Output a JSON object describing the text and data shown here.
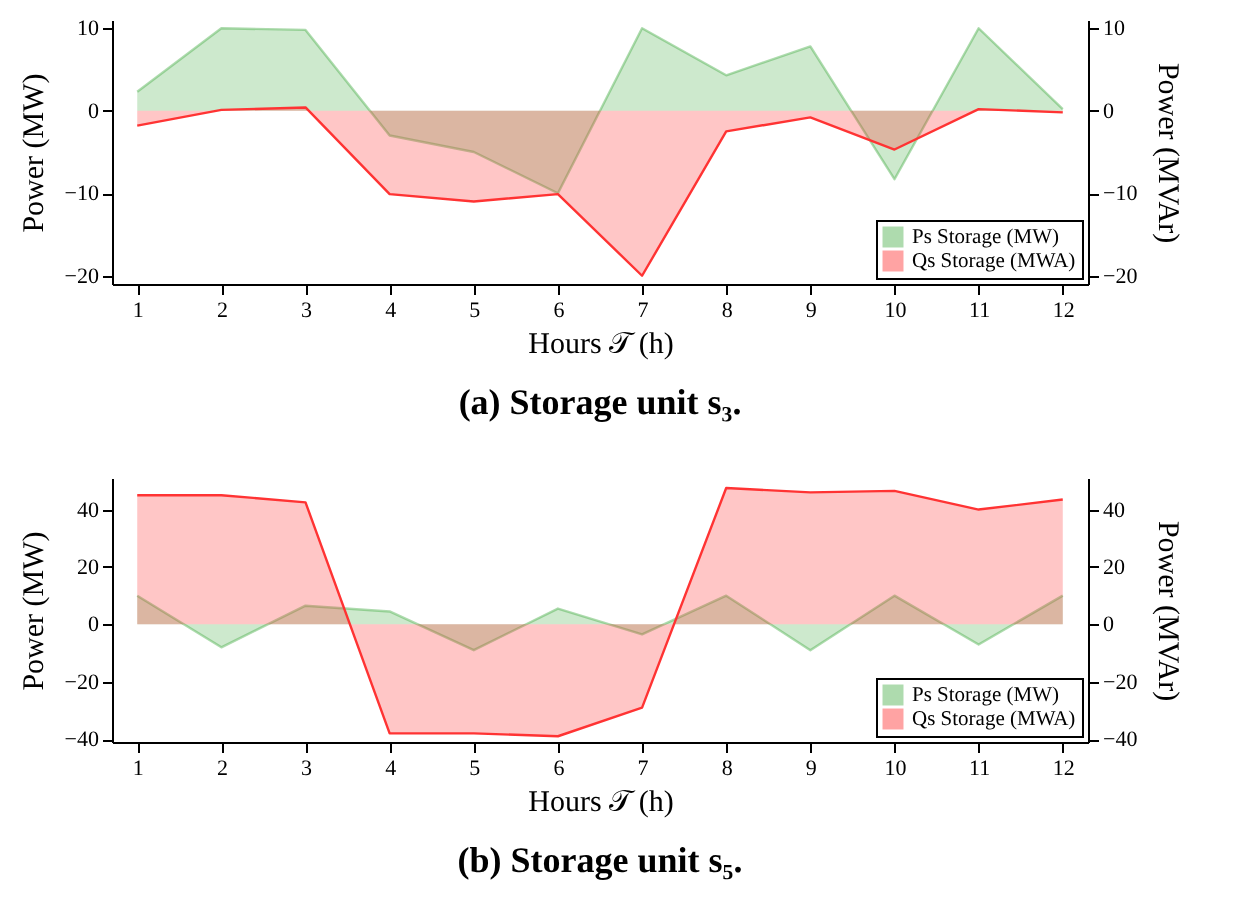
{
  "chart_data": [
    {
      "type": "area",
      "title": "(a) Storage unit s₃.",
      "xlabel": "Hours 𝒯 (h)",
      "ylabel": "Power (MW)",
      "y2label": "Power (MVAr)",
      "x": [
        1,
        2,
        3,
        4,
        5,
        6,
        7,
        8,
        9,
        10,
        11,
        12
      ],
      "xlim": [
        0.7,
        12.3
      ],
      "xticks": [
        1,
        2,
        3,
        4,
        5,
        6,
        7,
        8,
        9,
        10,
        11,
        12
      ],
      "ylim": [
        -21,
        11
      ],
      "yticks": [
        -20,
        -10,
        0,
        10
      ],
      "y2lim": [
        -21,
        11
      ],
      "y2ticks": [
        -20,
        -10,
        0,
        10
      ],
      "series": [
        {
          "name": "Ps Storage (MW)",
          "color": "#4caf4c",
          "values": [
            2.3,
            10,
            9.8,
            -3,
            -5,
            -10,
            10,
            4.3,
            7.8,
            -8.3,
            10,
            0.2
          ]
        },
        {
          "name": "Qs Storage (MWA)",
          "color": "#ff3333",
          "axis": "y2",
          "values": [
            -1.8,
            0.1,
            0.4,
            -10.1,
            -11,
            -10.1,
            -20,
            -2.5,
            -0.8,
            -4.7,
            0.2,
            -0.2
          ]
        }
      ],
      "legend": "bottom right",
      "grid": false
    },
    {
      "type": "area",
      "title": "(b) Storage unit s₅.",
      "xlabel": "Hours 𝒯 (h)",
      "ylabel": "Power (MW)",
      "y2label": "Power (MVAr)",
      "x": [
        1,
        2,
        3,
        4,
        5,
        6,
        7,
        8,
        9,
        10,
        11,
        12
      ],
      "xlim": [
        0.7,
        12.3
      ],
      "xticks": [
        1,
        2,
        3,
        4,
        5,
        6,
        7,
        8,
        9,
        10,
        11,
        12
      ],
      "ylim": [
        -41,
        51
      ],
      "yticks": [
        -40,
        -20,
        0,
        20,
        40
      ],
      "y2lim": [
        -41,
        51
      ],
      "y2ticks": [
        -40,
        -20,
        0,
        20,
        40
      ],
      "series": [
        {
          "name": "Ps Storage (MW)",
          "color": "#4caf4c",
          "values": [
            10,
            -8,
            6.5,
            4.5,
            -9,
            5.5,
            -3.5,
            10,
            -9,
            10,
            -7,
            10
          ]
        },
        {
          "name": "Qs Storage (MWA)",
          "color": "#ff3333",
          "axis": "y2",
          "values": [
            45,
            45,
            42.5,
            -38,
            -38,
            -39,
            -29,
            47.5,
            46,
            46.5,
            40,
            43.5
          ]
        }
      ],
      "legend": "bottom right",
      "grid": false
    }
  ]
}
